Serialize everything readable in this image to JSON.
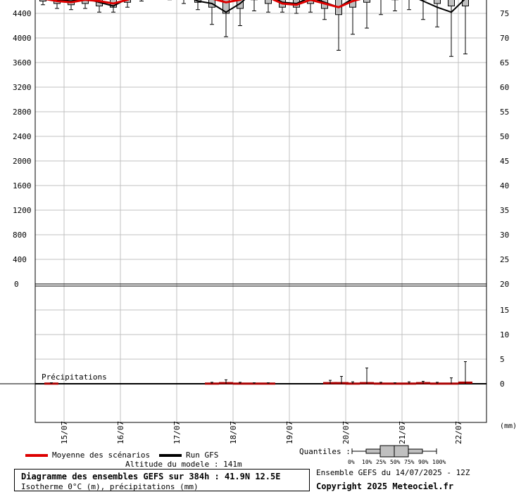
{
  "colors": {
    "mean_line": "#dd0000",
    "gfs_line": "#000000",
    "box_fill": "#c0c0c0",
    "grid": "#c0c0c0",
    "precip": "#aa0000"
  },
  "chart_data": [
    {
      "type": "line",
      "title": "Diagramme des ensembles GEFS sur 384h : 41.9N 12.5E",
      "ylabel_left": "Isotherme 0°C (m)",
      "ylim_left": [
        0,
        4800
      ],
      "yticks_left": [
        "4400",
        "4000",
        "3600",
        "3200",
        "2800",
        "2400",
        "2000",
        "1600",
        "1200",
        "800",
        "400",
        "0"
      ],
      "yticks_right": [
        "75",
        "70",
        "65",
        "60",
        "55",
        "50",
        "45",
        "40",
        "35",
        "30",
        "25",
        "20"
      ],
      "xticks": [
        "15/07",
        "16/07",
        "17/07",
        "18/07",
        "19/07",
        "20/07",
        "21/07",
        "22/07"
      ],
      "grid": true,
      "series": [
        {
          "name": "Moyenne des scénarios",
          "x": [
            0,
            0.25,
            0.5,
            0.75,
            1,
            1.25,
            1.5,
            1.75,
            2,
            2.25,
            2.5,
            2.75,
            3,
            3.25,
            3.5,
            3.75,
            4,
            4.25,
            4.5,
            4.75,
            5,
            5.25,
            5.5,
            5.75,
            6,
            6.25,
            6.5,
            6.75,
            7,
            7.25,
            7.5
          ],
          "values": [
            4640,
            4600,
            4580,
            4620,
            4600,
            4560,
            4620,
            4700,
            4760,
            4740,
            4700,
            4660,
            4640,
            4580,
            4620,
            4720,
            4660,
            4560,
            4540,
            4620,
            4560,
            4500,
            4600,
            4660,
            4720,
            4700,
            4760,
            4760,
            4720,
            4700,
            4700
          ]
        },
        {
          "name": "Run GFS",
          "x": [
            0,
            0.25,
            0.5,
            0.75,
            1,
            1.25,
            1.5,
            1.75,
            2,
            2.25,
            2.5,
            2.75,
            3,
            3.25,
            3.5,
            3.75,
            4,
            4.25,
            4.5,
            4.75,
            5,
            5.25,
            5.5,
            5.75,
            6,
            6.25,
            6.5,
            6.75,
            7,
            7.25,
            7.5
          ],
          "values": [
            4660,
            4620,
            4600,
            4640,
            4580,
            4520,
            4640,
            4740,
            4780,
            4720,
            4700,
            4600,
            4560,
            4420,
            4560,
            4760,
            4700,
            4580,
            4560,
            4660,
            4580,
            4500,
            4640,
            4720,
            4760,
            4660,
            4700,
            4600,
            4500,
            4420,
            4640
          ]
        }
      ],
      "boxes": {
        "x": [
          0,
          0.25,
          0.5,
          0.75,
          1,
          1.25,
          1.5,
          1.75,
          2,
          2.25,
          2.5,
          2.75,
          3,
          3.25,
          3.5,
          3.75,
          4,
          4.25,
          4.5,
          4.75,
          5,
          5.25,
          5.5,
          5.75,
          6,
          6.25,
          6.5,
          6.75,
          7,
          7.25,
          7.5
        ],
        "p10": [
          4540,
          4480,
          4460,
          4480,
          4420,
          4420,
          4500,
          4600,
          4660,
          4620,
          4560,
          4460,
          4220,
          4020,
          4200,
          4440,
          4420,
          4420,
          4400,
          4420,
          4300,
          3800,
          4060,
          4160,
          4380,
          4440,
          4460,
          4300,
          4180,
          3700,
          3740
        ],
        "p25": [
          4600,
          4560,
          4540,
          4560,
          4520,
          4500,
          4580,
          4680,
          4720,
          4680,
          4640,
          4580,
          4500,
          4400,
          4480,
          4620,
          4560,
          4500,
          4500,
          4560,
          4480,
          4380,
          4500,
          4580,
          4640,
          4620,
          4640,
          4620,
          4560,
          4520,
          4520
        ],
        "p75": [
          4700,
          4660,
          4640,
          4680,
          4680,
          4640,
          4700,
          4780,
          4820,
          4800,
          4780,
          4760,
          4760,
          4740,
          4760,
          4800,
          4780,
          4700,
          4680,
          4720,
          4700,
          4680,
          4720,
          4760,
          4800,
          4780,
          4820,
          4820,
          4800,
          4800,
          4800
        ],
        "p90": [
          4760,
          4720,
          4700,
          4740,
          4740,
          4700,
          4760,
          4820,
          4860,
          4860,
          4840,
          4840,
          4840,
          4820,
          4840,
          4860,
          4840,
          4780,
          4760,
          4800,
          4780,
          4780,
          4800,
          4820,
          4860,
          4860,
          4880,
          4880,
          4860,
          4860,
          4860
        ]
      }
    },
    {
      "type": "bar",
      "title": "Précipitations",
      "ylabel": "(mm)",
      "ylim": [
        0,
        20
      ],
      "yticks_right": [
        "20",
        "15",
        "10",
        "5",
        "0"
      ],
      "x": [
        0.15,
        3.0,
        3.25,
        3.5,
        3.75,
        4.0,
        5.1,
        5.3,
        5.5,
        5.75,
        6.0,
        6.25,
        6.5,
        6.75,
        7.0,
        7.25,
        7.5
      ],
      "values": [
        0.1,
        0.1,
        0.2,
        0.1,
        0.1,
        0.1,
        0.2,
        0.2,
        0.1,
        0.2,
        0.1,
        0.1,
        0.1,
        0.2,
        0.1,
        0.1,
        0.3
      ],
      "max": [
        0.2,
        0.3,
        0.8,
        0.3,
        0.2,
        0.2,
        0.7,
        1.5,
        0.4,
        3.2,
        0.3,
        0.2,
        0.4,
        0.5,
        0.3,
        1.2,
        4.5
      ]
    }
  ],
  "legend": {
    "mean_label": "Moyenne des scénarios",
    "gfs_label": "Run GFS",
    "quantiles_label": "Quantiles :",
    "quantile_ticks": [
      "0%",
      "10%",
      "25%",
      "50%",
      "75%",
      "90%",
      "100%"
    ]
  },
  "footer": {
    "altitude": "Altitude du modele : 141m",
    "title": "Diagramme des ensembles GEFS sur 384h : 41.9N 12.5E",
    "subtitle": "Isotherme 0°C (m), précipitations (mm)",
    "ensemble": "Ensemble GEFS du 14/07/2025 - 12Z",
    "copyright": "Copyright 2025 Meteociel.fr",
    "precip_label": "Précipitations",
    "mm_unit": "(mm)"
  }
}
